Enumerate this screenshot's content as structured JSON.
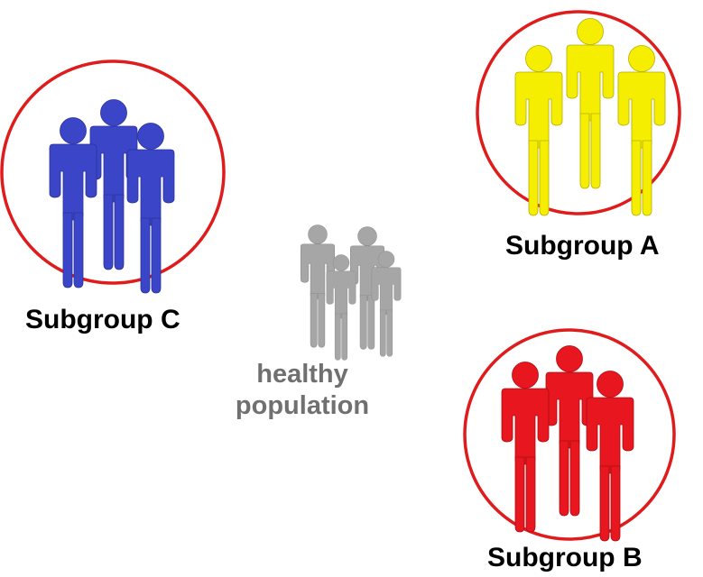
{
  "groups": [
    {
      "id": "subgroup-c",
      "label": "Subgroup C",
      "color": "#3a45c8",
      "ring": "#e01b1b",
      "figures": 3
    },
    {
      "id": "subgroup-a",
      "label": "Subgroup A",
      "color": "#f5ee00",
      "ring": "#e01b1b",
      "figures": 3
    },
    {
      "id": "subgroup-b",
      "label": "Subgroup B",
      "color": "#e8161e",
      "ring": "#e01b1b",
      "figures": 3
    }
  ],
  "healthy": {
    "line1": "healthy",
    "line2": "population",
    "color": "#a6a6a6",
    "text_color": "#707070",
    "figures": 4
  },
  "icons": [
    "person-icon"
  ]
}
